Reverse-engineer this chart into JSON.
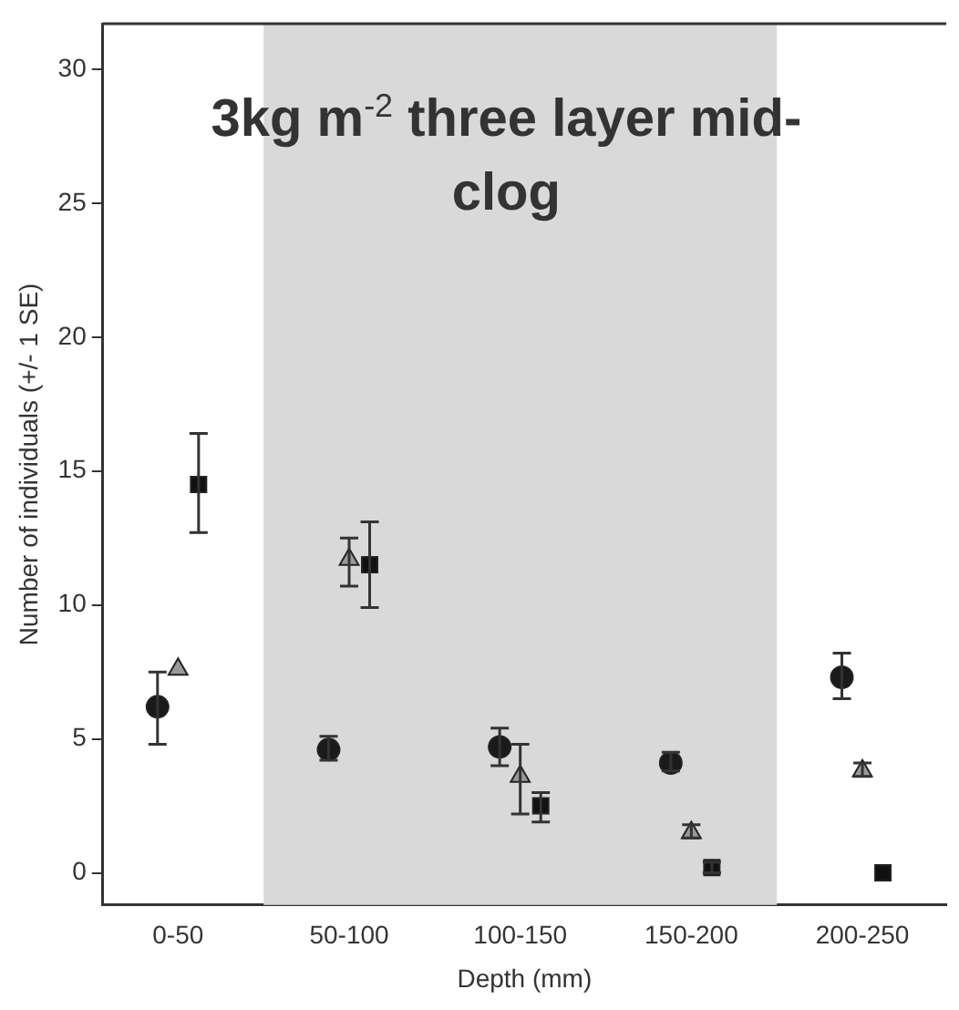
{
  "chart_data": {
    "type": "scatter",
    "title": "3kg m$^{-2}$ three layer mid-clog",
    "xlabel": "Depth (mm)",
    "ylabel": "Number of individuals (+/- 1 SE)",
    "categories": [
      "0-50",
      "50-100",
      "100-150",
      "150-200",
      "200-250"
    ],
    "ylim": [
      -1.2,
      31.7
    ],
    "yticks": [
      0,
      5,
      10,
      15,
      20,
      25,
      30
    ],
    "grid": false,
    "legend": false,
    "bands": [
      {
        "axis": "x",
        "from": "50-100",
        "to": "150-200",
        "color": "#d9d9d9"
      }
    ],
    "series": [
      {
        "color": "#1a1a1a",
        "marker": "circle",
        "values": [
          6.2,
          4.6,
          4.7,
          4.1,
          7.3
        ],
        "errors": [
          [
            4.8,
            7.5
          ],
          [
            4.2,
            5.1
          ],
          [
            4.0,
            5.4
          ],
          [
            3.8,
            4.5
          ],
          [
            6.5,
            8.2
          ]
        ]
      },
      {
        "color": "#999999",
        "marker": "triangle",
        "values": [
          7.6,
          11.7,
          3.6,
          1.5,
          3.8
        ],
        "errors": [
          null,
          [
            10.7,
            12.5
          ],
          [
            2.2,
            4.8
          ],
          [
            1.3,
            1.8
          ],
          [
            3.6,
            4.1
          ]
        ]
      },
      {
        "color": "#111111",
        "marker": "square",
        "values": [
          14.5,
          11.5,
          2.5,
          0.2,
          0.0
        ],
        "errors": [
          [
            12.7,
            16.4
          ],
          [
            9.9,
            13.1
          ],
          [
            1.9,
            3.0
          ],
          [
            0.0,
            0.4
          ],
          null
        ]
      }
    ]
  }
}
